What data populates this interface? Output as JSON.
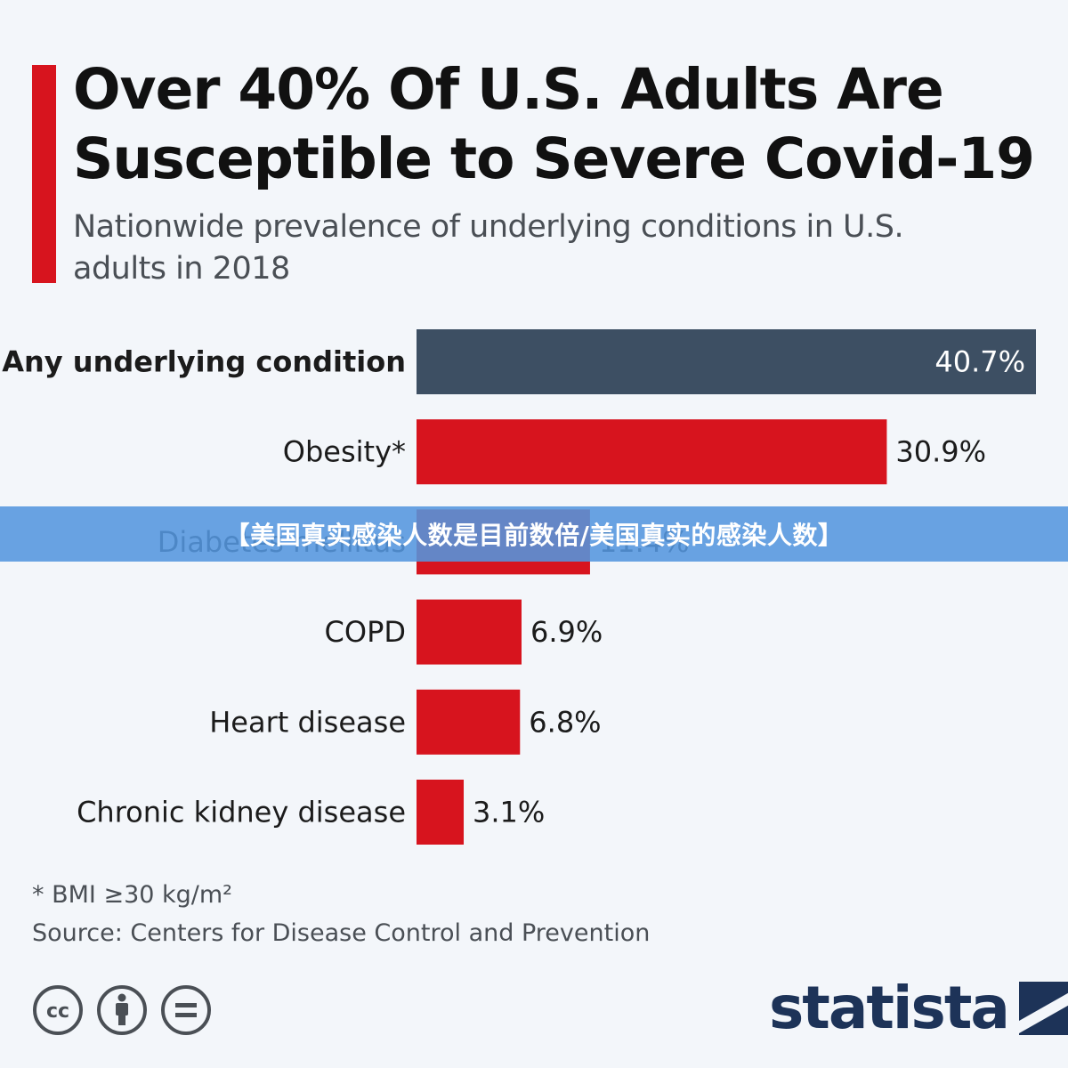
{
  "chart_data": {
    "type": "bar",
    "orientation": "horizontal",
    "title": "Over 40% Of U.S. Adults Are Susceptible to Severe Covid-19",
    "subtitle": "Nationwide prevalence of underlying conditions in U.S. adults in 2018",
    "categories": [
      "Any underlying condition",
      "Obesity*",
      "Diabetes mellitus",
      "COPD",
      "Heart disease",
      "Chronic kidney disease"
    ],
    "values": [
      40.7,
      30.9,
      11.4,
      6.9,
      6.8,
      3.1
    ],
    "value_labels": [
      "40.7%",
      "30.9%",
      "11.4%",
      "6.9%",
      "6.8%",
      "3.1%"
    ],
    "unit": "%",
    "xlim": [
      0,
      40.7
    ],
    "grid": false,
    "legend": "none",
    "colors": {
      "highlight": "#3d4f63",
      "bars": "#d7141e",
      "accent": "#d7141e"
    }
  },
  "overlay_banner": "【美国真实感染人数是目前数倍/美国真实的感染人数】",
  "footnote": "* BMI ≥30 kg/m²",
  "source": "Source: Centers for Disease Control and Prevention",
  "license_icons": [
    "cc-icon",
    "attribution-icon",
    "no-derivatives-icon"
  ],
  "logo": {
    "wordmark": "statista",
    "color": "#1d3358"
  }
}
